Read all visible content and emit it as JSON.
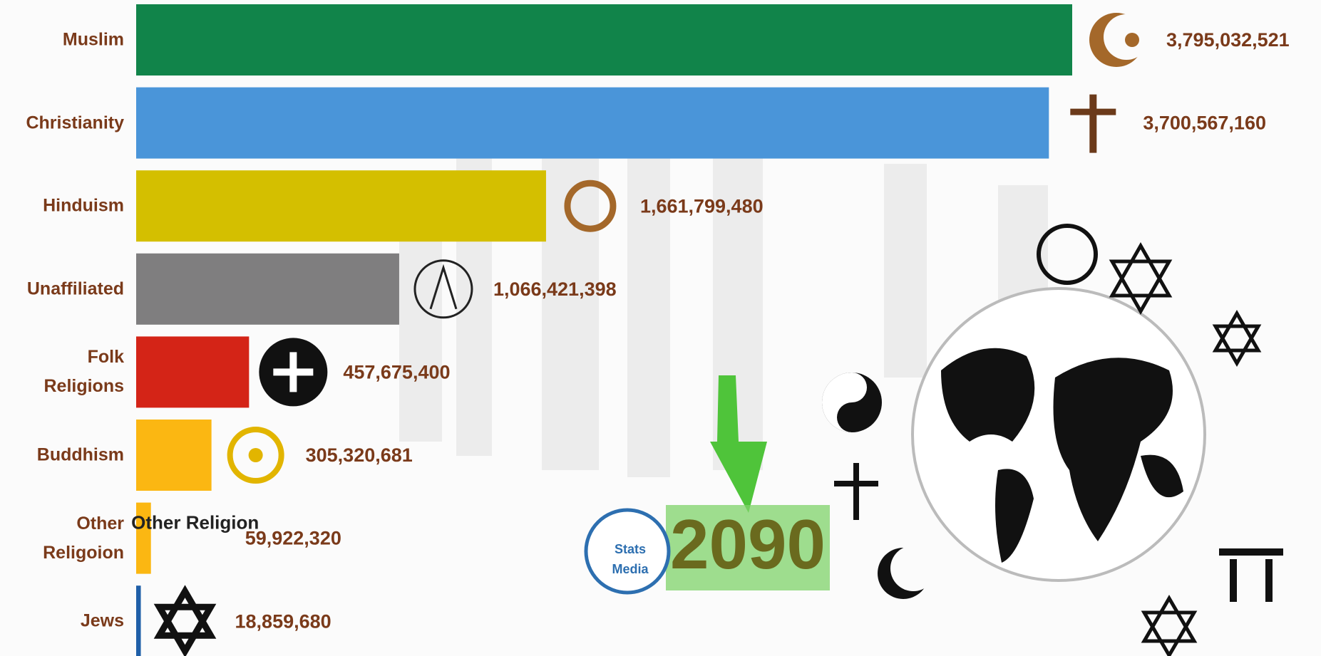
{
  "chart_data": {
    "type": "bar",
    "categories": [
      "Muslim",
      "Christianity",
      "Hinduism",
      "Unaffiliated",
      "Folk Religions",
      "Buddhism",
      "Other Religoion",
      "Jews"
    ],
    "values": [
      3795032521,
      3700567160,
      1661799480,
      1066421398,
      457675400,
      305320681,
      59922320,
      18859680
    ],
    "value_labels": [
      "3,795,032,521",
      "3,700,567,160",
      "1,661,799,480",
      "1,066,421,398",
      "457,675,400",
      "305,320,681",
      "59,922,320",
      "18,859,680"
    ],
    "colors": [
      "#11844a",
      "#4a95d9",
      "#d4bf00",
      "#7f7e7f",
      "#d42417",
      "#fbb712",
      "#fbb712",
      "#1f5fa8"
    ],
    "icon_text": "Other Religion",
    "year": 2090,
    "logo_text": [
      "Stats",
      "Media"
    ]
  }
}
